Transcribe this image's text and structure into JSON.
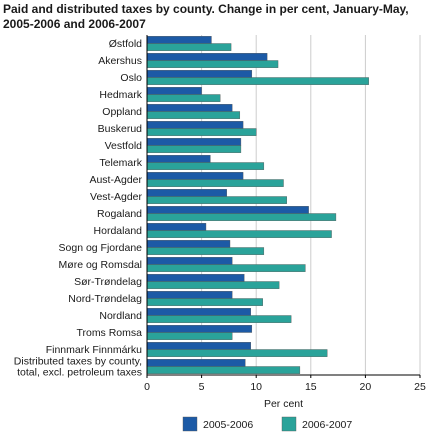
{
  "chart_data": {
    "type": "bar",
    "orientation": "horizontal",
    "title_lines": [
      "Paid and distributed taxes by county. Change in per cent, January-May,",
      "2005-2006 and 2006-2007"
    ],
    "xlabel": "Per cent",
    "xlim": [
      0,
      25
    ],
    "xticks": [
      0,
      5,
      10,
      15,
      20,
      25
    ],
    "grid": "vertical",
    "legend_position": "bottom",
    "categories": [
      [
        "Østfold"
      ],
      [
        "Akershus"
      ],
      [
        "Oslo"
      ],
      [
        "Hedmark"
      ],
      [
        "Oppland"
      ],
      [
        "Buskerud"
      ],
      [
        "Vestfold"
      ],
      [
        "Telemark"
      ],
      [
        "Aust-Agder"
      ],
      [
        "Vest-Agder"
      ],
      [
        "Rogaland"
      ],
      [
        "Hordaland"
      ],
      [
        "Sogn og Fjordane"
      ],
      [
        "Møre og Romsdal"
      ],
      [
        "Sør-Trøndelag"
      ],
      [
        "Nord-Trøndelag"
      ],
      [
        "Nordland"
      ],
      [
        "Troms Romsa"
      ],
      [
        "Finnmark Finnmárku"
      ],
      [
        "Distributed taxes by county,",
        "total, excl. petroleum taxes"
      ]
    ],
    "series": [
      {
        "name": "2005-2006",
        "color": "#1c5aa6",
        "values": [
          5.9,
          11.0,
          9.6,
          5.0,
          7.8,
          8.8,
          8.6,
          5.8,
          8.8,
          7.3,
          14.8,
          5.4,
          7.6,
          7.8,
          8.9,
          7.8,
          9.5,
          9.6,
          9.5,
          9.0
        ]
      },
      {
        "name": "2006-2007",
        "color": "#2aa39a",
        "values": [
          7.7,
          12.0,
          20.3,
          6.7,
          8.5,
          10.0,
          8.6,
          10.7,
          12.5,
          12.8,
          17.3,
          16.9,
          10.7,
          14.5,
          12.1,
          10.6,
          13.2,
          7.8,
          16.5,
          14.0
        ]
      }
    ]
  }
}
